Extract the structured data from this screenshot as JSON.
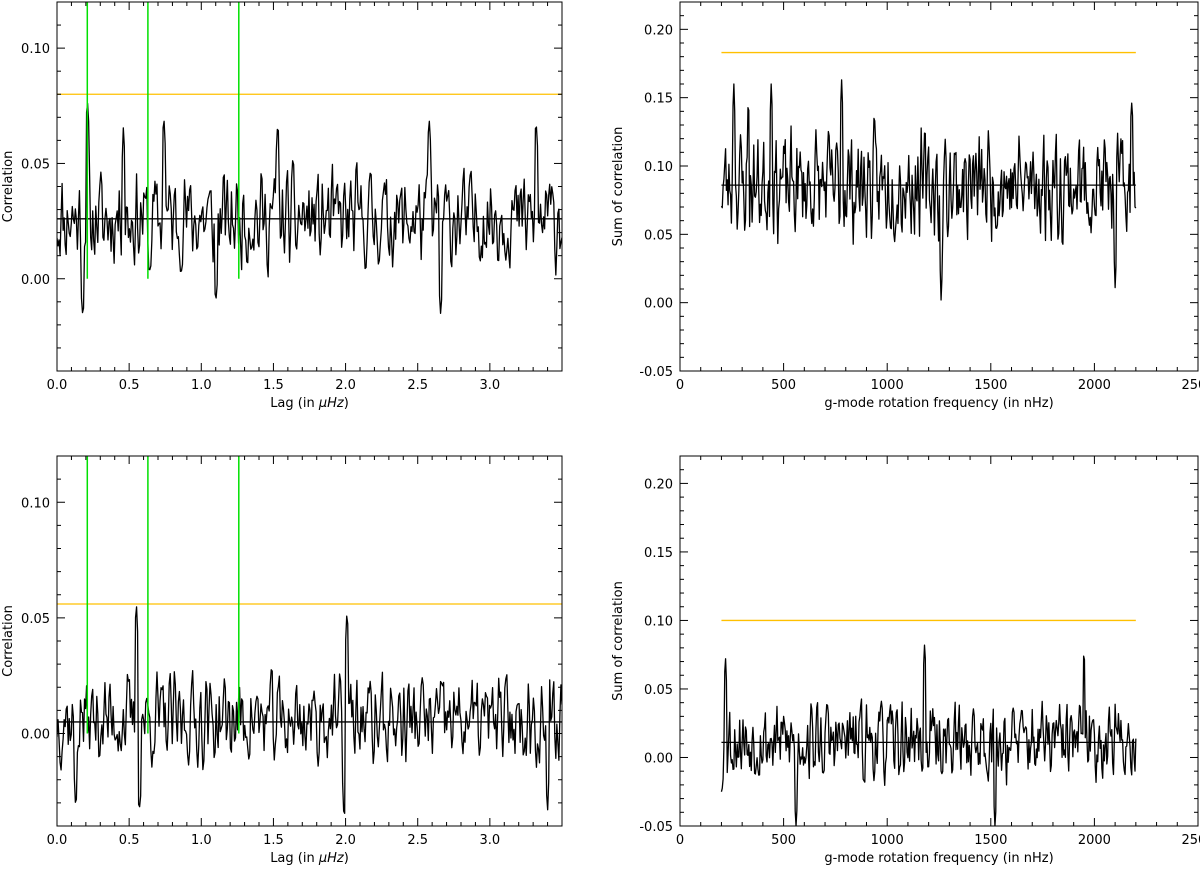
{
  "colors": {
    "series": "#000000",
    "threshold": "#ffc000",
    "markers": "#00e000",
    "frame": "#000000"
  },
  "chart_data": [
    {
      "id": "top-left",
      "type": "line",
      "xlabel_main": "Lag (in ",
      "xlabel_unit": "μHz",
      "xlabel_end": ")",
      "ylabel": "Correlation",
      "xlim": [
        0.0,
        3.5
      ],
      "ylim": [
        -0.04,
        0.12
      ],
      "xticks": [
        0.0,
        0.5,
        1.0,
        1.5,
        2.0,
        2.5,
        3.0
      ],
      "xtick_labels": [
        "0.0",
        "0.5",
        "1.0",
        "1.5",
        "2.0",
        "2.5",
        "3.0"
      ],
      "yticks": [
        0.0,
        0.05,
        0.1
      ],
      "ytick_labels": [
        "0.00",
        "0.05",
        "0.10"
      ],
      "series": [
        {
          "name": "correlation",
          "x_start": 0.0,
          "x_step": 0.00707,
          "count": 496,
          "seed": 11,
          "mean": 0.026,
          "amplitude": 0.016,
          "spikes": [
            [
              0.21,
              0.078
            ],
            [
              0.18,
              -0.017
            ],
            [
              0.74,
              0.072
            ],
            [
              0.64,
              0.002
            ],
            [
              1.1,
              -0.012
            ],
            [
              2.66,
              -0.017
            ],
            [
              2.58,
              0.069
            ],
            [
              3.32,
              0.069
            ],
            [
              1.53,
              0.068
            ],
            [
              0.46,
              0.066
            ]
          ],
          "ymin_clip": -0.02,
          "ymax_clip": 0.079
        }
      ],
      "hlines": [
        {
          "name": "significance-threshold",
          "y": 0.08,
          "color": "#ffc000"
        },
        {
          "name": "mean-level",
          "y": 0.026,
          "color": "#000000"
        }
      ],
      "vlines": [
        {
          "name": "marker-1",
          "x": 0.21,
          "y0": 0.0,
          "y1": 0.12
        },
        {
          "name": "marker-2",
          "x": 0.63,
          "y0": 0.0,
          "y1": 0.12
        },
        {
          "name": "marker-3",
          "x": 1.26,
          "y0": 0.0,
          "y1": 0.12
        }
      ]
    },
    {
      "id": "top-right",
      "type": "line",
      "xlabel_main": "g-mode rotation frequency (in nHz)",
      "ylabel": "Sum of correlation",
      "xlim": [
        0,
        2500
      ],
      "ylim": [
        -0.05,
        0.22
      ],
      "xticks": [
        0,
        500,
        1000,
        1500,
        2000,
        2500
      ],
      "xtick_labels": [
        "0",
        "500",
        "1000",
        "1500",
        "2000",
        "2500"
      ],
      "yticks": [
        -0.05,
        0.0,
        0.05,
        0.1,
        0.15,
        0.2
      ],
      "ytick_labels": [
        "-0.05",
        "0.00",
        "0.05",
        "0.10",
        "0.15",
        "0.20"
      ],
      "series": [
        {
          "name": "sum-of-correlation",
          "x_start": 200,
          "x_step": 4.0,
          "count": 501,
          "seed": 23,
          "mean": 0.086,
          "amplitude": 0.03,
          "spikes": [
            [
              260,
              0.16
            ],
            [
              780,
              0.163
            ],
            [
              1260,
              0.002
            ],
            [
              2100,
              0.011
            ],
            [
              2180,
              0.146
            ],
            [
              440,
              0.16
            ],
            [
              330,
              0.148
            ]
          ],
          "ymin_clip": 0.0,
          "ymax_clip": 0.164
        }
      ],
      "hlines": [
        {
          "name": "significance-threshold",
          "y": 0.183,
          "color": "#ffc000",
          "x0": 200,
          "x1": 2200
        },
        {
          "name": "mean-level",
          "y": 0.086,
          "color": "#000000",
          "x0": 200,
          "x1": 2200
        }
      ],
      "vlines": []
    },
    {
      "id": "bottom-left",
      "type": "line",
      "xlabel_main": "Lag (in ",
      "xlabel_unit": "μHz",
      "xlabel_end": ")",
      "ylabel": "Correlation",
      "xlim": [
        0.0,
        3.5
      ],
      "ylim": [
        -0.04,
        0.12
      ],
      "xticks": [
        0.0,
        0.5,
        1.0,
        1.5,
        2.0,
        2.5,
        3.0
      ],
      "xtick_labels": [
        "0.0",
        "0.5",
        "1.0",
        "1.5",
        "2.0",
        "2.5",
        "3.0"
      ],
      "yticks": [
        0.0,
        0.05,
        0.1
      ],
      "ytick_labels": [
        "0.00",
        "0.05",
        "0.10"
      ],
      "series": [
        {
          "name": "correlation",
          "x_start": 0.0,
          "x_step": 0.00707,
          "count": 496,
          "seed": 37,
          "mean": 0.006,
          "amplitude": 0.015,
          "spikes": [
            [
              0.55,
              0.057
            ],
            [
              2.01,
              0.054
            ],
            [
              0.57,
              -0.034
            ],
            [
              1.99,
              -0.037
            ],
            [
              3.4,
              -0.034
            ],
            [
              0.13,
              -0.033
            ]
          ],
          "ymin_clip": -0.037,
          "ymax_clip": 0.058
        }
      ],
      "hlines": [
        {
          "name": "significance-threshold",
          "y": 0.056,
          "color": "#ffc000"
        },
        {
          "name": "mean-level",
          "y": 0.005,
          "color": "#000000"
        }
      ],
      "vlines": [
        {
          "name": "marker-1",
          "x": 0.21,
          "y0": 0.0,
          "y1": 0.12
        },
        {
          "name": "marker-2",
          "x": 0.63,
          "y0": 0.0,
          "y1": 0.12
        },
        {
          "name": "marker-3",
          "x": 1.26,
          "y0": 0.0,
          "y1": 0.12
        }
      ]
    },
    {
      "id": "bottom-right",
      "type": "line",
      "xlabel_main": "g-mode rotation frequency (in nHz)",
      "ylabel": "Sum of correlation",
      "xlim": [
        0,
        2500
      ],
      "ylim": [
        -0.05,
        0.22
      ],
      "xticks": [
        0,
        500,
        1000,
        1500,
        2000,
        2500
      ],
      "xtick_labels": [
        "0",
        "500",
        "1000",
        "1500",
        "2000",
        "2500"
      ],
      "yticks": [
        -0.05,
        0.0,
        0.05,
        0.1,
        0.15,
        0.2
      ],
      "ytick_labels": [
        "-0.05",
        "0.00",
        "0.05",
        "0.10",
        "0.15",
        "0.20"
      ],
      "series": [
        {
          "name": "sum-of-correlation",
          "x_start": 200,
          "x_step": 4.0,
          "count": 501,
          "seed": 53,
          "mean": 0.012,
          "amplitude": 0.022,
          "spikes": [
            [
              220,
              0.072
            ],
            [
              1180,
              0.082
            ],
            [
              1950,
              0.079
            ],
            [
              560,
              -0.05
            ],
            [
              1520,
              -0.05
            ],
            [
              200,
              -0.025
            ]
          ],
          "ymin_clip": -0.05,
          "ymax_clip": 0.083
        }
      ],
      "hlines": [
        {
          "name": "significance-threshold",
          "y": 0.1,
          "color": "#ffc000",
          "x0": 200,
          "x1": 2200
        },
        {
          "name": "mean-level",
          "y": 0.011,
          "color": "#000000",
          "x0": 200,
          "x1": 2200
        }
      ],
      "vlines": []
    }
  ]
}
